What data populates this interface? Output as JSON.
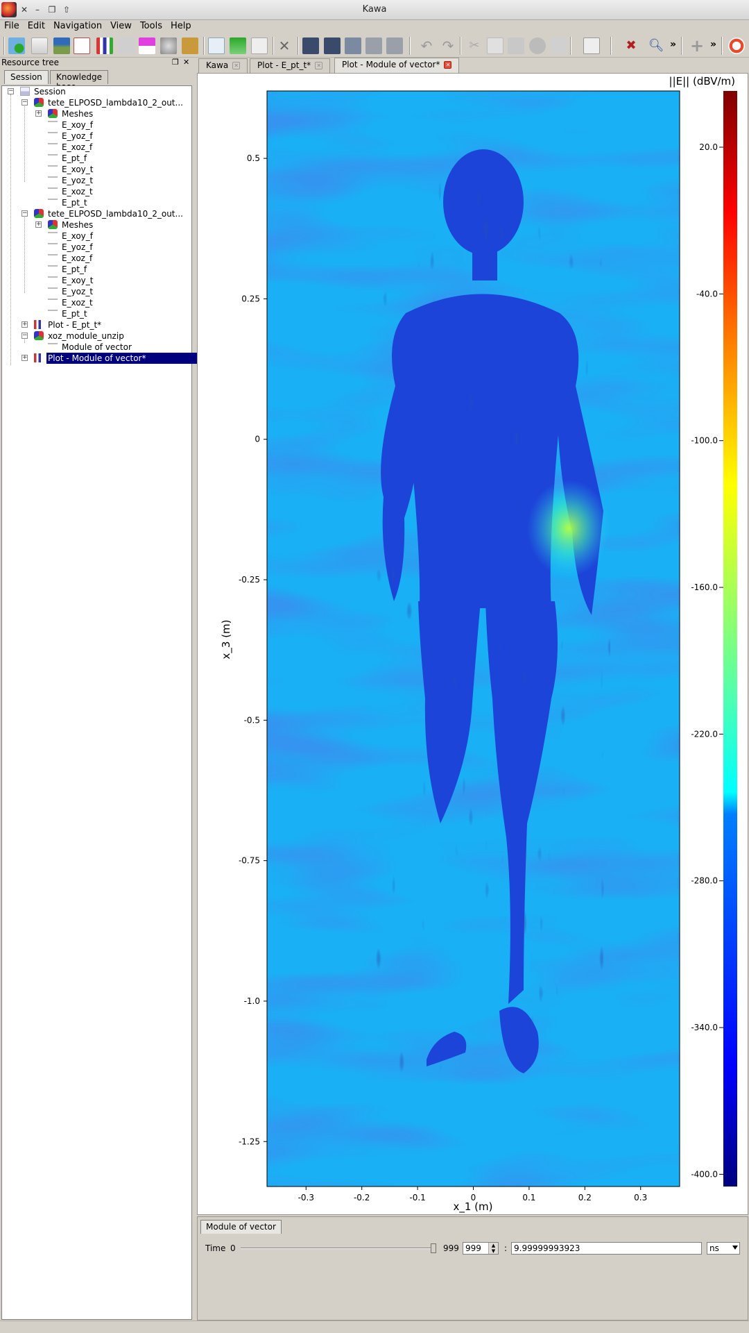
{
  "window": {
    "title": "Kawa",
    "controls": [
      "close-icon",
      "minimize-icon",
      "restore-icon",
      "up-icon"
    ]
  },
  "menu": {
    "items": [
      "File",
      "Edit",
      "Navigation",
      "View",
      "Tools",
      "Help"
    ]
  },
  "toolbar": {
    "more_label": "»"
  },
  "dock": {
    "title": "Resource tree",
    "tabs": [
      "Session",
      "Knowledge base"
    ],
    "tree": {
      "root": "Session",
      "node1": "tete_ELPOSD_lambda10_2_out...",
      "node1_meshes": "Meshes",
      "node1_children": [
        "E_xoy_f",
        "E_yoz_f",
        "E_xoz_f",
        "E_pt_f",
        "E_xoy_t",
        "E_yoz_t",
        "E_xoz_t",
        "E_pt_t"
      ],
      "node2": "tete_ELPOSD_lambda10_2_out...",
      "node2_meshes": "Meshes",
      "node2_children": [
        "E_xoy_f",
        "E_yoz_f",
        "E_xoz_f",
        "E_pt_f",
        "E_xoy_t",
        "E_yoz_t",
        "E_xoz_t",
        "E_pt_t"
      ],
      "plot1": "Plot - E_pt_t*",
      "node3": "xoz_module_unzip",
      "node3_child": "Module of vector",
      "plot2": "Plot - Module of vector*"
    }
  },
  "doc_tabs": [
    "Kawa",
    "Plot - E_pt_t*",
    "Plot - Module of vector*"
  ],
  "chart_data": {
    "type": "heatmap",
    "xlabel": "x_1 (m)",
    "ylabel": "x_3 (m)",
    "xlim": [
      -0.37,
      0.37
    ],
    "ylim": [
      -1.33,
      0.62
    ],
    "x_ticks": [
      "-0.3",
      "-0.2",
      "-0.1",
      "0",
      "0.1",
      "0.2",
      "0.3"
    ],
    "x_tick_values": [
      -0.3,
      -0.2,
      -0.1,
      0,
      0.1,
      0.2,
      0.3
    ],
    "y_ticks": [
      "0.5",
      "0.25",
      "0",
      "-0.25",
      "-0.5",
      "-0.75",
      "-1.0",
      "-1.25"
    ],
    "y_tick_values": [
      0.5,
      0.25,
      0,
      -0.25,
      -0.5,
      -0.75,
      -1.0,
      -1.25
    ],
    "colorbar_label": "||E|| (dBV/m)",
    "colorbar_ticks": [
      "20.0",
      "-40.0",
      "-100.0",
      "-160.0",
      "-220.0",
      "-280.0",
      "-340.0",
      "-400.0"
    ],
    "colorbar_tick_values": [
      20,
      -40,
      -100,
      -160,
      -220,
      -280,
      -340,
      -400
    ],
    "colorbar_range": [
      -405,
      43
    ],
    "colormap": [
      "#00007f",
      "#0000ff",
      "#007fff",
      "#00ffff",
      "#7fff7f",
      "#ffff00",
      "#ff7f00",
      "#ff0000",
      "#7f0000"
    ],
    "background_color": "#1ab0f5",
    "body_color": "#1c44d8"
  },
  "bottom_panel": {
    "tab": "Module of vector",
    "time_label": "Time",
    "slider_min": "0",
    "slider_max": "999",
    "slider_fraction": 1.0,
    "spin_value": "999",
    "separator": ":",
    "time_value": "9.99999993923",
    "unit": "ns"
  }
}
